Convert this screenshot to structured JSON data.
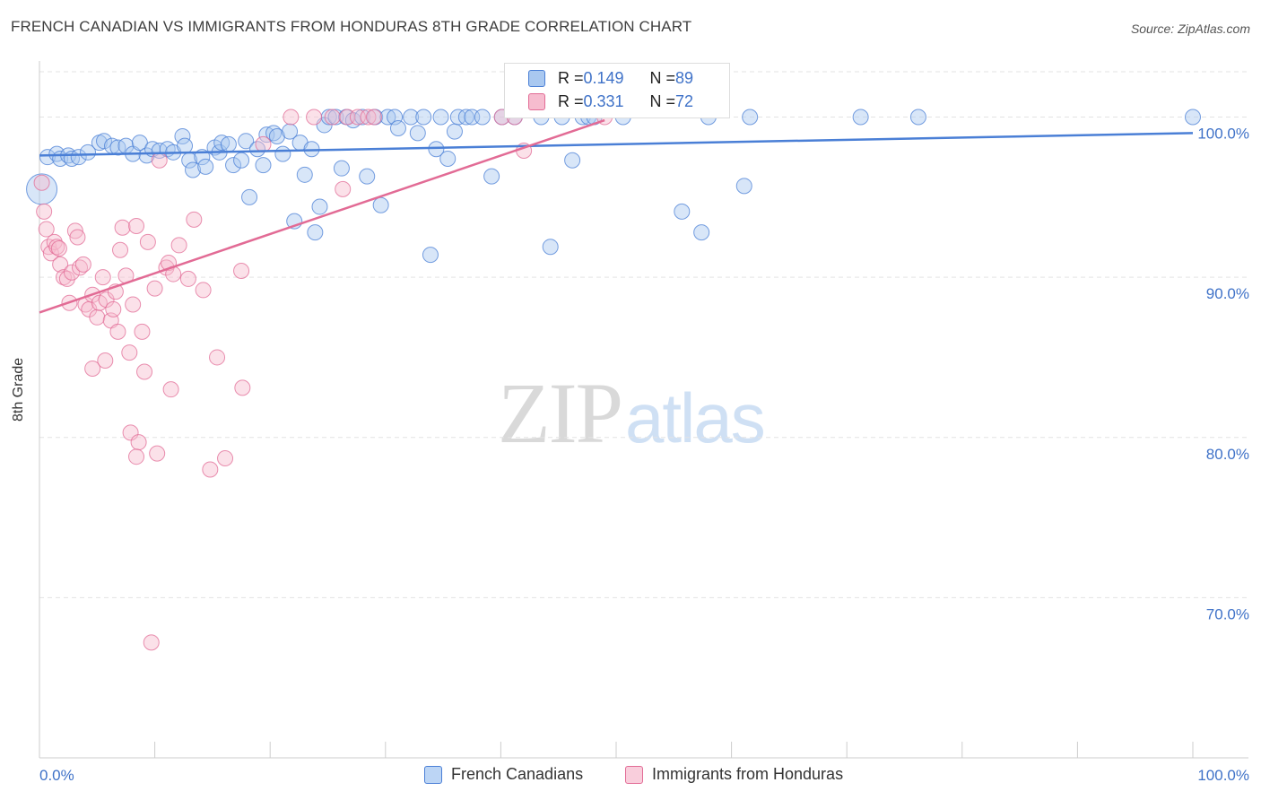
{
  "title": "FRENCH CANADIAN VS IMMIGRANTS FROM HONDURAS 8TH GRADE CORRELATION CHART",
  "source": "Source: ZipAtlas.com",
  "watermark": {
    "zip": "ZIP",
    "atlas": "atlas"
  },
  "chart_data": {
    "type": "scatter",
    "title": "FRENCH CANADIAN VS IMMIGRANTS FROM HONDURAS 8TH GRADE CORRELATION CHART",
    "xlabel": "",
    "ylabel": "8th Grade",
    "xlim": [
      0,
      100
    ],
    "ylim": [
      60,
      103.5
    ],
    "x_tick_labels": {
      "min": "0.0%",
      "max": "100.0%"
    },
    "y_ticks": [
      {
        "value": 100,
        "label": "100.0%"
      },
      {
        "value": 90,
        "label": "90.0%"
      },
      {
        "value": 80,
        "label": "80.0%"
      },
      {
        "value": 70,
        "label": "70.0%"
      }
    ],
    "grid": true,
    "legend_position": "bottom-center",
    "stats": [
      {
        "r_label": "R = ",
        "r": "0.149",
        "n_label": "N = ",
        "n": "89"
      },
      {
        "r_label": "R = ",
        "r": "0.331",
        "n_label": "N = ",
        "n": "72"
      }
    ],
    "series": [
      {
        "name": "French Canadians",
        "color": "#4a7fd6",
        "fill": "#a9c8f0",
        "trend": {
          "x1": 0,
          "y1": 97.6,
          "x2": 100,
          "y2": 99.0
        },
        "points": [
          [
            0.2,
            95.5
          ],
          [
            0.7,
            97.5
          ],
          [
            1.5,
            97.7
          ],
          [
            1.8,
            97.4
          ],
          [
            2.5,
            97.6
          ],
          [
            2.8,
            97.4
          ],
          [
            3.4,
            97.5
          ],
          [
            4.2,
            97.8
          ],
          [
            5.2,
            98.4
          ],
          [
            5.6,
            98.5
          ],
          [
            6.3,
            98.2
          ],
          [
            6.8,
            98.1
          ],
          [
            7.5,
            98.2
          ],
          [
            8.1,
            97.7
          ],
          [
            8.7,
            98.4
          ],
          [
            9.3,
            97.6
          ],
          [
            9.8,
            98.0
          ],
          [
            10.4,
            97.9
          ],
          [
            11.1,
            98.0
          ],
          [
            11.6,
            97.8
          ],
          [
            12.4,
            98.8
          ],
          [
            12.6,
            98.2
          ],
          [
            13.0,
            97.3
          ],
          [
            13.3,
            96.7
          ],
          [
            14.1,
            97.5
          ],
          [
            14.4,
            96.9
          ],
          [
            15.2,
            98.1
          ],
          [
            15.6,
            97.8
          ],
          [
            15.8,
            98.4
          ],
          [
            16.4,
            98.3
          ],
          [
            16.8,
            97.0
          ],
          [
            17.5,
            97.3
          ],
          [
            17.9,
            98.5
          ],
          [
            18.2,
            95.0
          ],
          [
            18.9,
            98.0
          ],
          [
            19.4,
            97.0
          ],
          [
            19.7,
            98.9
          ],
          [
            20.3,
            99.0
          ],
          [
            20.6,
            98.8
          ],
          [
            21.1,
            97.7
          ],
          [
            21.7,
            99.1
          ],
          [
            22.1,
            93.5
          ],
          [
            22.6,
            98.4
          ],
          [
            23.0,
            96.4
          ],
          [
            23.6,
            98.0
          ],
          [
            23.9,
            92.8
          ],
          [
            24.3,
            94.4
          ],
          [
            24.7,
            99.5
          ],
          [
            25.1,
            100.0
          ],
          [
            25.7,
            100.0
          ],
          [
            26.2,
            96.8
          ],
          [
            26.6,
            100.0
          ],
          [
            27.2,
            99.8
          ],
          [
            28.0,
            100.0
          ],
          [
            28.4,
            96.3
          ],
          [
            29.1,
            100.0
          ],
          [
            29.6,
            94.5
          ],
          [
            30.2,
            100.0
          ],
          [
            30.8,
            100.0
          ],
          [
            31.1,
            99.3
          ],
          [
            32.2,
            100.0
          ],
          [
            32.8,
            99.0
          ],
          [
            33.3,
            100.0
          ],
          [
            33.9,
            91.4
          ],
          [
            34.4,
            98.0
          ],
          [
            34.8,
            100.0
          ],
          [
            35.4,
            97.4
          ],
          [
            36.0,
            99.1
          ],
          [
            36.3,
            100.0
          ],
          [
            37.0,
            100.0
          ],
          [
            37.5,
            100.0
          ],
          [
            38.4,
            100.0
          ],
          [
            39.2,
            96.3
          ],
          [
            40.1,
            100.0
          ],
          [
            41.2,
            100.0
          ],
          [
            43.5,
            100.0
          ],
          [
            44.3,
            91.9
          ],
          [
            45.3,
            100.0
          ],
          [
            46.2,
            97.3
          ],
          [
            47.1,
            100.0
          ],
          [
            47.6,
            100.0
          ],
          [
            48.1,
            100.0
          ],
          [
            50.6,
            100.0
          ],
          [
            55.7,
            94.1
          ],
          [
            57.4,
            92.8
          ],
          [
            58.0,
            100.0
          ],
          [
            61.1,
            95.7
          ],
          [
            61.6,
            100.0
          ],
          [
            71.2,
            100.0
          ],
          [
            76.2,
            100.0
          ],
          [
            100.0,
            100.0
          ]
        ]
      },
      {
        "name": "Immigrants from Honduras",
        "color": "#e26b95",
        "fill": "#f6bccf",
        "trend": {
          "x1": 0,
          "y1": 87.8,
          "x2": 49.0,
          "y2": 99.8
        },
        "points": [
          [
            0.2,
            95.9
          ],
          [
            0.4,
            94.1
          ],
          [
            0.6,
            93.0
          ],
          [
            0.8,
            91.9
          ],
          [
            1.0,
            91.5
          ],
          [
            1.3,
            92.2
          ],
          [
            1.5,
            91.9
          ],
          [
            1.7,
            91.8
          ],
          [
            1.8,
            90.8
          ],
          [
            2.1,
            90.0
          ],
          [
            2.4,
            89.9
          ],
          [
            2.6,
            88.4
          ],
          [
            2.8,
            90.3
          ],
          [
            3.1,
            92.9
          ],
          [
            3.3,
            92.5
          ],
          [
            3.5,
            90.6
          ],
          [
            3.8,
            90.8
          ],
          [
            4.0,
            88.3
          ],
          [
            4.3,
            88.0
          ],
          [
            4.6,
            88.9
          ],
          [
            4.6,
            84.3
          ],
          [
            5.0,
            87.5
          ],
          [
            5.2,
            88.4
          ],
          [
            5.5,
            90.0
          ],
          [
            5.7,
            84.8
          ],
          [
            5.8,
            88.6
          ],
          [
            6.2,
            87.3
          ],
          [
            6.4,
            88.0
          ],
          [
            6.6,
            89.1
          ],
          [
            6.8,
            86.6
          ],
          [
            7.0,
            91.7
          ],
          [
            7.2,
            93.1
          ],
          [
            7.5,
            90.1
          ],
          [
            7.8,
            85.3
          ],
          [
            7.9,
            80.3
          ],
          [
            8.1,
            88.3
          ],
          [
            8.4,
            93.2
          ],
          [
            8.6,
            79.7
          ],
          [
            8.9,
            86.6
          ],
          [
            9.1,
            84.1
          ],
          [
            9.4,
            92.2
          ],
          [
            10.0,
            89.3
          ],
          [
            10.4,
            97.3
          ],
          [
            11.0,
            90.6
          ],
          [
            11.2,
            90.9
          ],
          [
            11.6,
            90.2
          ],
          [
            12.1,
            92.0
          ],
          [
            12.9,
            89.9
          ],
          [
            13.4,
            93.6
          ],
          [
            14.2,
            89.2
          ],
          [
            14.8,
            78.0
          ],
          [
            15.4,
            85.0
          ],
          [
            16.1,
            78.7
          ],
          [
            17.5,
            90.4
          ],
          [
            17.6,
            83.1
          ],
          [
            19.4,
            98.3
          ],
          [
            8.4,
            78.8
          ],
          [
            9.7,
            67.2
          ],
          [
            10.2,
            79.0
          ],
          [
            11.4,
            83.0
          ],
          [
            21.8,
            100.0
          ],
          [
            23.8,
            100.0
          ],
          [
            25.4,
            100.0
          ],
          [
            26.3,
            95.5
          ],
          [
            26.7,
            100.0
          ],
          [
            27.6,
            100.0
          ],
          [
            28.5,
            100.0
          ],
          [
            29.0,
            100.0
          ],
          [
            40.1,
            100.0
          ],
          [
            41.2,
            100.0
          ],
          [
            42.0,
            97.9
          ],
          [
            49.0,
            100.0
          ]
        ]
      }
    ]
  }
}
